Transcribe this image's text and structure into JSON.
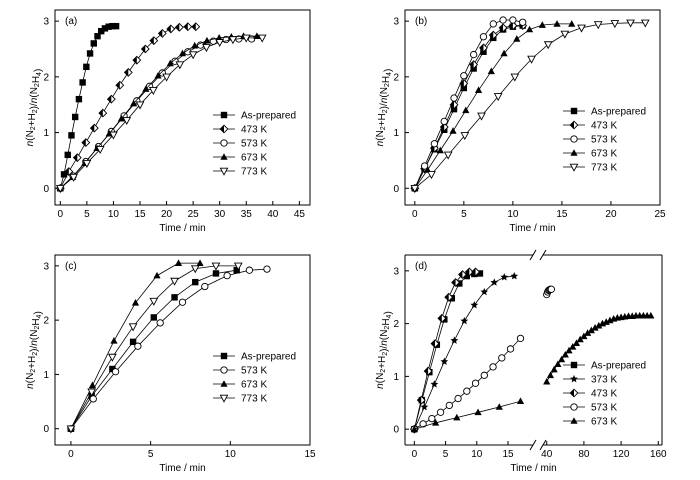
{
  "chart_data": [
    {
      "panel": "(a)",
      "type": "line",
      "xlabel": "Time / min",
      "ylabel": "n(N2+H2)/n(N2H4)",
      "xlim": [
        -1,
        47
      ],
      "ylim": [
        -0.3,
        3.2
      ],
      "xticks": [
        0,
        5,
        10,
        15,
        20,
        25,
        30,
        35,
        40,
        45
      ],
      "yticks": [
        0,
        1,
        2,
        3
      ],
      "legend_position": "bottom-right",
      "series": [
        {
          "name": "As-prepared",
          "marker": "square",
          "x": [
            0,
            0.7,
            1.4,
            2.1,
            2.8,
            3.5,
            4.2,
            4.9,
            5.6,
            6.3,
            7,
            7.7,
            8.4,
            9.1,
            9.8,
            10.5
          ],
          "y": [
            0,
            0.25,
            0.6,
            0.95,
            1.28,
            1.6,
            1.9,
            2.18,
            2.42,
            2.6,
            2.73,
            2.82,
            2.87,
            2.9,
            2.91,
            2.91
          ]
        },
        {
          "name": "473 K",
          "marker": "diamond",
          "x": [
            0,
            1.6,
            3.2,
            4.8,
            6.4,
            8,
            9.6,
            11.2,
            12.8,
            14.4,
            16,
            17.6,
            19.2,
            20.8,
            22.4,
            24,
            25.5
          ],
          "y": [
            0,
            0.3,
            0.55,
            0.82,
            1.08,
            1.35,
            1.6,
            1.85,
            2.08,
            2.3,
            2.5,
            2.65,
            2.78,
            2.86,
            2.89,
            2.9,
            2.9
          ]
        },
        {
          "name": "573 K",
          "marker": "circle-open",
          "x": [
            0,
            2.4,
            4.8,
            7.2,
            9.6,
            12,
            14.4,
            16.8,
            19.2,
            21.6,
            24,
            26.4,
            28.8,
            31.2,
            33.6,
            36
          ],
          "y": [
            0,
            0.22,
            0.48,
            0.75,
            1.02,
            1.3,
            1.57,
            1.83,
            2.07,
            2.28,
            2.45,
            2.57,
            2.64,
            2.67,
            2.68,
            2.68
          ]
        },
        {
          "name": "673 K",
          "marker": "triangle",
          "x": [
            0,
            2.3,
            4.6,
            6.9,
            9.2,
            11.5,
            13.8,
            16.1,
            18.4,
            20.7,
            23,
            25.3,
            27.6,
            29.9,
            32.2,
            34.5,
            37
          ],
          "y": [
            0,
            0.2,
            0.45,
            0.72,
            0.98,
            1.25,
            1.52,
            1.78,
            2.02,
            2.24,
            2.42,
            2.56,
            2.65,
            2.7,
            2.72,
            2.73,
            2.73
          ]
        },
        {
          "name": "773 K",
          "marker": "triangle-down-open",
          "x": [
            0,
            2.5,
            5,
            7.5,
            10,
            12.5,
            15,
            17.5,
            20,
            22.5,
            25,
            27.5,
            30,
            32.5,
            35,
            38
          ],
          "y": [
            0,
            0.2,
            0.45,
            0.7,
            0.96,
            1.22,
            1.5,
            1.76,
            2,
            2.22,
            2.4,
            2.53,
            2.62,
            2.67,
            2.7,
            2.7
          ]
        }
      ]
    },
    {
      "panel": "(b)",
      "type": "line",
      "xlabel": "Time / min",
      "ylabel": "n(N2+H2)/n(N2H4)",
      "xlim": [
        -1,
        25
      ],
      "ylim": [
        -0.3,
        3.2
      ],
      "xticks": [
        0,
        5,
        10,
        15,
        20,
        25
      ],
      "yticks": [
        0,
        1,
        2,
        3
      ],
      "legend_position": "bottom-right",
      "series": [
        {
          "name": "As-prepared",
          "marker": "square",
          "x": [
            0,
            1,
            2,
            3,
            4,
            5,
            6,
            7,
            8,
            9,
            10,
            11
          ],
          "y": [
            0,
            0.35,
            0.7,
            1.05,
            1.42,
            1.8,
            2.15,
            2.45,
            2.7,
            2.85,
            2.9,
            2.92
          ]
        },
        {
          "name": "473 K",
          "marker": "diamond",
          "x": [
            0,
            1,
            2,
            3,
            4,
            5,
            6,
            7,
            8,
            9,
            10,
            11
          ],
          "y": [
            0,
            0.35,
            0.72,
            1.1,
            1.5,
            1.88,
            2.22,
            2.52,
            2.75,
            2.88,
            2.92,
            2.92
          ]
        },
        {
          "name": "573 K",
          "marker": "circle-open",
          "x": [
            0,
            1,
            2,
            3,
            4,
            5,
            6,
            7,
            8,
            9,
            10,
            11
          ],
          "y": [
            0,
            0.4,
            0.8,
            1.2,
            1.62,
            2.02,
            2.4,
            2.72,
            2.95,
            3.02,
            3.02,
            2.98
          ]
        },
        {
          "name": "673 K",
          "marker": "triangle",
          "x": [
            0,
            1.3,
            2.6,
            3.9,
            5.2,
            6.5,
            7.8,
            9.1,
            10.4,
            11.7,
            13,
            14.5,
            16
          ],
          "y": [
            0,
            0.33,
            0.68,
            1.03,
            1.4,
            1.76,
            2.1,
            2.42,
            2.68,
            2.85,
            2.93,
            2.95,
            2.95
          ]
        },
        {
          "name": "773 K",
          "marker": "triangle-down-open",
          "x": [
            0,
            1.7,
            3.4,
            5.1,
            6.8,
            8.5,
            10.2,
            11.9,
            13.6,
            15.3,
            17,
            18.7,
            20.4,
            22,
            23.5
          ],
          "y": [
            0,
            0.25,
            0.6,
            0.95,
            1.3,
            1.65,
            2,
            2.32,
            2.58,
            2.77,
            2.88,
            2.94,
            2.96,
            2.97,
            2.97
          ]
        }
      ]
    },
    {
      "panel": "(c)",
      "type": "line",
      "xlabel": "Time / min",
      "ylabel": "n(N2+H2)/n(N2H4)",
      "xlim": [
        -1,
        15
      ],
      "ylim": [
        -0.3,
        3.2
      ],
      "xticks": [
        0,
        5,
        10,
        15
      ],
      "yticks": [
        0,
        1,
        2,
        3
      ],
      "legend_position": "bottom-right",
      "series": [
        {
          "name": "As-prepared",
          "marker": "square",
          "x": [
            0,
            1.3,
            2.6,
            3.9,
            5.2,
            6.5,
            7.8,
            9.1,
            10.4
          ],
          "y": [
            0,
            0.6,
            1.1,
            1.6,
            2.05,
            2.42,
            2.7,
            2.86,
            2.92
          ]
        },
        {
          "name": "573 K",
          "marker": "circle-open",
          "x": [
            0,
            1.4,
            2.8,
            4.2,
            5.6,
            7,
            8.4,
            9.8,
            11.2,
            12.3
          ],
          "y": [
            0,
            0.55,
            1.05,
            1.52,
            1.95,
            2.33,
            2.62,
            2.82,
            2.92,
            2.94
          ]
        },
        {
          "name": "673 K",
          "marker": "triangle",
          "x": [
            0,
            1.35,
            2.7,
            4.05,
            5.4,
            6.75,
            8.1
          ],
          "y": [
            0,
            0.8,
            1.62,
            2.32,
            2.82,
            3.05,
            3.05
          ]
        },
        {
          "name": "773 K",
          "marker": "triangle-down-open",
          "x": [
            0,
            1.3,
            2.6,
            3.9,
            5.2,
            6.5,
            7.8,
            9.1,
            10.5
          ],
          "y": [
            0,
            0.68,
            1.32,
            1.88,
            2.35,
            2.72,
            2.95,
            3.0,
            3.0
          ]
        }
      ]
    },
    {
      "panel": "(d)",
      "type": "line",
      "xlabel": "Time / min",
      "ylabel": "n(N2+H2)/n(N2H4)",
      "x_axis_break": true,
      "xlim_left": [
        -1.5,
        19
      ],
      "xlim_right": [
        36,
        164
      ],
      "xticks_left": [
        0,
        5,
        10,
        15
      ],
      "xticks_right": [
        40,
        80,
        120,
        160
      ],
      "ylim": [
        -0.3,
        3.3
      ],
      "yticks": [
        0,
        1,
        2,
        3
      ],
      "legend_position": "bottom-right",
      "series": [
        {
          "name": "As-prepared",
          "marker": "square",
          "x": [
            0,
            1.2,
            2.4,
            3.6,
            4.8,
            6,
            7.2,
            8.4,
            9.6,
            10.5
          ],
          "y": [
            0,
            0.55,
            1.08,
            1.6,
            2.08,
            2.48,
            2.76,
            2.9,
            2.94,
            2.95
          ]
        },
        {
          "name": "373 K",
          "marker": "star",
          "x": [
            0,
            1.6,
            3.2,
            4.8,
            6.4,
            8,
            9.6,
            11.2,
            12.8,
            14.4,
            16
          ],
          "y": [
            0,
            0.42,
            0.85,
            1.28,
            1.68,
            2.05,
            2.35,
            2.6,
            2.78,
            2.88,
            2.9
          ]
        },
        {
          "name": "473 K",
          "marker": "diamond",
          "x": [
            0,
            1.1,
            2.2,
            3.3,
            4.4,
            5.5,
            6.6,
            7.7,
            8.8,
            9.8
          ],
          "y": [
            0,
            0.55,
            1.1,
            1.62,
            2.1,
            2.5,
            2.78,
            2.93,
            2.98,
            2.98
          ]
        },
        {
          "name": "573 K",
          "marker": "circle-open",
          "x": [
            0,
            1.4,
            2.8,
            4.2,
            5.6,
            7,
            8.4,
            9.8,
            11.2,
            12.6,
            14,
            15.4,
            17,
            40,
            41,
            42,
            43,
            44,
            45
          ],
          "y": [
            0,
            0.1,
            0.2,
            0.32,
            0.45,
            0.58,
            0.72,
            0.87,
            1.02,
            1.18,
            1.35,
            1.52,
            1.72,
            2.55,
            2.6,
            2.63,
            2.64,
            2.65,
            2.65
          ]
        },
        {
          "name": "673 K",
          "marker": "triangle",
          "x": [
            0,
            3.4,
            6.8,
            10.2,
            13.6,
            17,
            40,
            44,
            48,
            52,
            56,
            60,
            64,
            68,
            72,
            76,
            80,
            84,
            88,
            92,
            96,
            100,
            104,
            108,
            112,
            116,
            120,
            124,
            128,
            132,
            136,
            140,
            144,
            148,
            152
          ],
          "y": [
            0,
            0.12,
            0.22,
            0.32,
            0.42,
            0.53,
            0.9,
            1.02,
            1.13,
            1.23,
            1.32,
            1.41,
            1.49,
            1.56,
            1.63,
            1.7,
            1.76,
            1.82,
            1.87,
            1.92,
            1.96,
            2.0,
            2.03,
            2.06,
            2.09,
            2.11,
            2.12,
            2.13,
            2.14,
            2.14,
            2.15,
            2.15,
            2.15,
            2.15,
            2.15
          ]
        }
      ]
    }
  ]
}
